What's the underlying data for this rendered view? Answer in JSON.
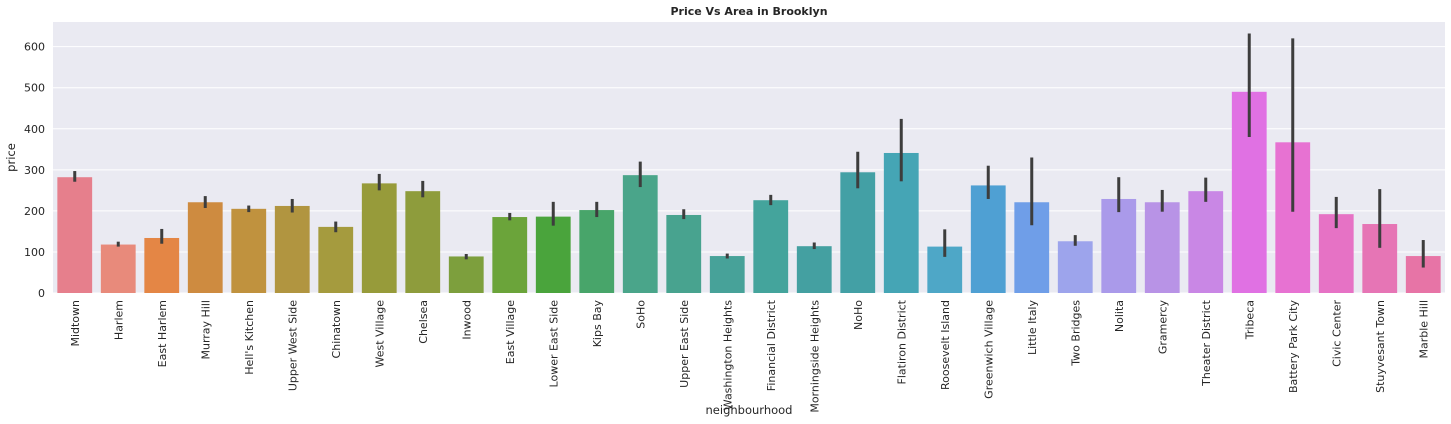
{
  "chart_data": {
    "type": "bar",
    "title": "Price Vs Area in Brooklyn",
    "xlabel": "neighbourhood",
    "ylabel": "price",
    "ylim": [
      0,
      660
    ],
    "yticks": [
      0,
      100,
      200,
      300,
      400,
      500,
      600
    ],
    "grid": true,
    "background": "#eaeaf2",
    "categories": [
      "Midtown",
      "Harlem",
      "East Harlem",
      "Murray Hill",
      "Hell's Kitchen",
      "Upper West Side",
      "Chinatown",
      "West Village",
      "Chelsea",
      "Inwood",
      "East Village",
      "Lower East Side",
      "Kips Bay",
      "SoHo",
      "Upper East Side",
      "Washington Heights",
      "Financial District",
      "Morningside Heights",
      "NoHo",
      "Flatiron District",
      "Roosevelt Island",
      "Greenwich Village",
      "Little Italy",
      "Two Bridges",
      "Nolita",
      "Gramercy",
      "Theater District",
      "Tribeca",
      "Battery Park City",
      "Civic Center",
      "Stuyvesant Town",
      "Marble Hill"
    ],
    "values": [
      282,
      118,
      134,
      221,
      205,
      212,
      161,
      267,
      248,
      89,
      185,
      186,
      202,
      287,
      190,
      90,
      226,
      114,
      294,
      341,
      113,
      262,
      221,
      126,
      229,
      221,
      248,
      490,
      367,
      192,
      168,
      90
    ],
    "error_low": [
      271,
      113,
      120,
      207,
      197,
      196,
      148,
      250,
      233,
      82,
      177,
      164,
      185,
      258,
      180,
      84,
      214,
      107,
      255,
      272,
      88,
      229,
      165,
      115,
      197,
      198,
      222,
      380,
      198,
      158,
      110,
      62
    ],
    "error_high": [
      297,
      125,
      156,
      236,
      213,
      229,
      174,
      290,
      273,
      95,
      195,
      222,
      222,
      320,
      204,
      96,
      239,
      123,
      344,
      424,
      155,
      310,
      330,
      141,
      282,
      251,
      281,
      632,
      620,
      234,
      253,
      129
    ],
    "colors": [
      "#e67f8c",
      "#e88a7b",
      "#e48645",
      "#ce8b40",
      "#c0923e",
      "#b19540",
      "#a59b3e",
      "#979b3a",
      "#8e9c3c",
      "#7d9f3d",
      "#6ba43a",
      "#4aa43c",
      "#48a56a",
      "#4aa58a",
      "#48a38f",
      "#47a299",
      "#44a49c",
      "#44a0a1",
      "#43a0a5",
      "#45a5b5",
      "#4ea7c7",
      "#4fa0d3",
      "#6f9ee8",
      "#9da4ec",
      "#aa9aea",
      "#b893e6",
      "#c987e5",
      "#e071e3",
      "#e772d2",
      "#e672c5",
      "#e675b5",
      "#e774a6"
    ]
  }
}
